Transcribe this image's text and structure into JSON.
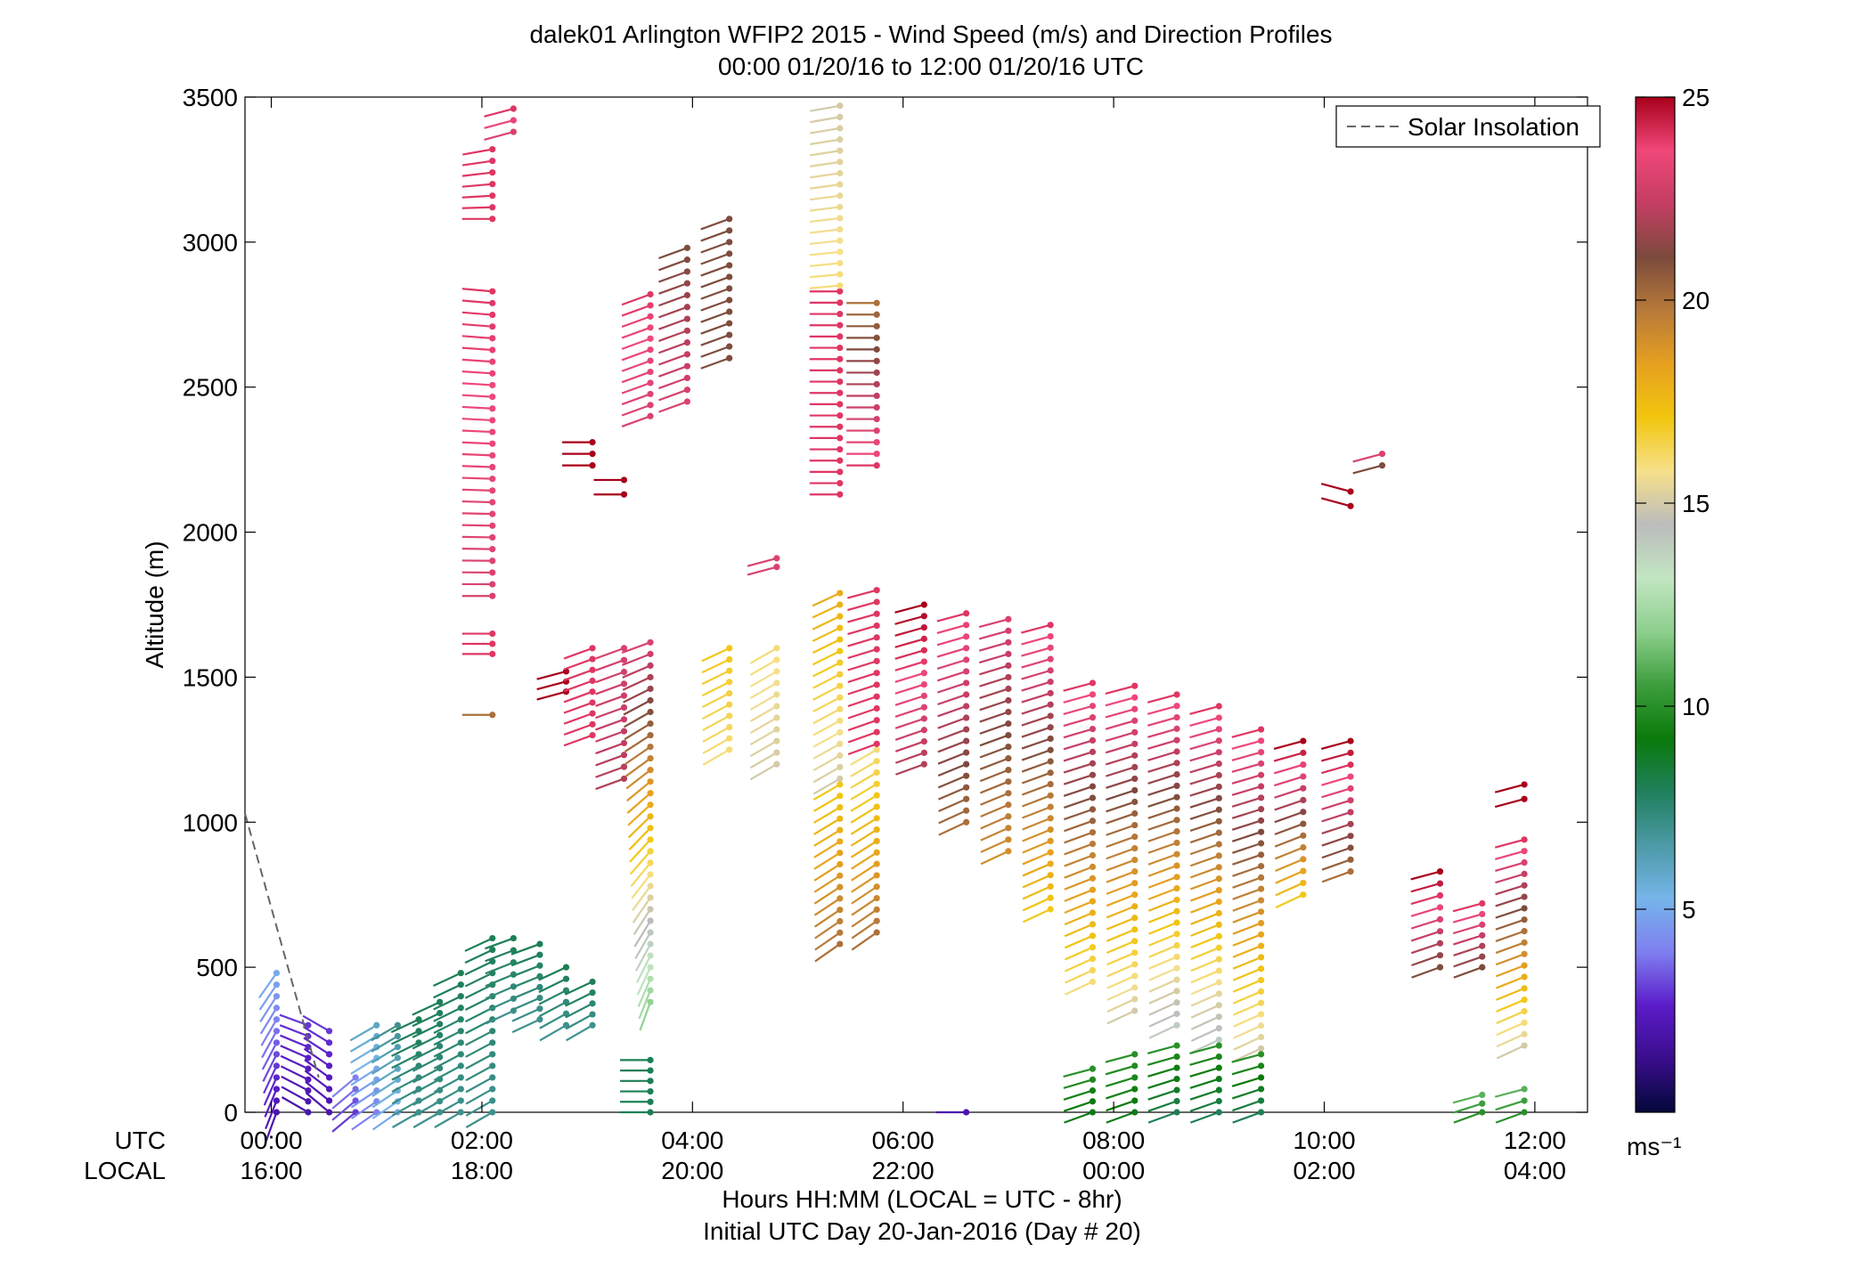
{
  "chart_data": {
    "type": "scatter",
    "subtype": "wind-barb profile",
    "title": "dalek01 Arlington WFIP2 2015 - Wind Speed (m/s) and Direction Profiles",
    "subtitle": "00:00 01/20/16 to 12:00 01/20/16  UTC",
    "xlabel": "Hours HH:MM  (LOCAL = UTC - 8hr)",
    "xlabel2": "Initial UTC Day 20-Jan-2016 (Day # 20)",
    "ylabel": "Altitude (m)",
    "xlim": [
      -0.25,
      12.5
    ],
    "ylim": [
      0,
      3500
    ],
    "x_row_labels": {
      "utc": "UTC",
      "local": "LOCAL"
    },
    "x_ticks": [
      {
        "hour": 0,
        "utc": "00:00",
        "local": "16:00"
      },
      {
        "hour": 2,
        "utc": "02:00",
        "local": "18:00"
      },
      {
        "hour": 4,
        "utc": "04:00",
        "local": "20:00"
      },
      {
        "hour": 6,
        "utc": "06:00",
        "local": "22:00"
      },
      {
        "hour": 8,
        "utc": "08:00",
        "local": "00:00"
      },
      {
        "hour": 10,
        "utc": "10:00",
        "local": "02:00"
      },
      {
        "hour": 12,
        "utc": "12:00",
        "local": "04:00"
      }
    ],
    "y_ticks": [
      0,
      500,
      1000,
      1500,
      2000,
      2500,
      3000,
      3500
    ],
    "legend": {
      "label": "Solar Insolation",
      "position": "top-right",
      "style": "dashed gray line"
    },
    "solar_insolation": {
      "x": [
        -0.25,
        0.45
      ],
      "y": [
        1030,
        120
      ]
    },
    "colorbar": {
      "label": "ms⁻¹",
      "ticks": [
        5,
        10,
        15,
        20,
        25
      ],
      "range": [
        0,
        25
      ],
      "colormap": [
        "#03083a",
        "#3a0d8c",
        "#5b1cc9",
        "#7f7ff0",
        "#76b5ea",
        "#4c9aa6",
        "#1f7f5c",
        "#0a7a0a",
        "#3d9e3d",
        "#8ecf8e",
        "#c2e6c2",
        "#bcbcbc",
        "#f6e08a",
        "#f2c60e",
        "#e6a01f",
        "#b87a3a",
        "#7b4a3c",
        "#c43d63",
        "#f0477a",
        "#a8001a"
      ]
    },
    "profiles": [
      {
        "t": 0.05,
        "segments": [
          {
            "a0": 0,
            "a1": 480,
            "s0": 2,
            "s1": 5,
            "d0": 200,
            "d1": 215
          }
        ]
      },
      {
        "t": 0.35,
        "segments": [
          {
            "a0": 0,
            "a1": 300,
            "s0": 2,
            "s1": 3,
            "d0": 300,
            "d1": 290
          }
        ]
      },
      {
        "t": 0.55,
        "segments": [
          {
            "a0": 0,
            "a1": 280,
            "s0": 2,
            "s1": 3,
            "d0": 310,
            "d1": 300
          }
        ]
      },
      {
        "t": 0.8,
        "segments": [
          {
            "a0": 0,
            "a1": 120,
            "s0": 3,
            "s1": 4,
            "d0": 230,
            "d1": 230
          }
        ]
      },
      {
        "t": 1.0,
        "segments": [
          {
            "a0": 0,
            "a1": 300,
            "s0": 4,
            "s1": 6,
            "d0": 235,
            "d1": 240
          }
        ]
      },
      {
        "t": 1.2,
        "segments": [
          {
            "a0": 0,
            "a1": 300,
            "s0": 5,
            "s1": 7,
            "d0": 235,
            "d1": 240
          }
        ]
      },
      {
        "t": 1.4,
        "segments": [
          {
            "a0": 0,
            "a1": 320,
            "s0": 7,
            "s1": 8,
            "d0": 240,
            "d1": 245
          }
        ]
      },
      {
        "t": 1.6,
        "segments": [
          {
            "a0": 0,
            "a1": 380,
            "s0": 7,
            "s1": 8,
            "d0": 240,
            "d1": 245
          }
        ]
      },
      {
        "t": 1.8,
        "segments": [
          {
            "a0": 0,
            "a1": 480,
            "s0": 7,
            "s1": 8,
            "d0": 240,
            "d1": 245
          }
        ]
      },
      {
        "t": 2.1,
        "segments": [
          {
            "a0": 0,
            "a1": 600,
            "s0": 7,
            "s1": 8,
            "d0": 240,
            "d1": 245
          },
          {
            "a0": 1370,
            "a1": 1370,
            "s0": 20,
            "s1": 20,
            "d0": 270,
            "d1": 270
          },
          {
            "a0": 1580,
            "a1": 1650,
            "s0": 24,
            "s1": 24,
            "d0": 270,
            "d1": 270
          },
          {
            "a0": 1780,
            "a1": 2830,
            "s0": 23,
            "s1": 24,
            "d0": 270,
            "d1": 275
          },
          {
            "a0": 3080,
            "a1": 3320,
            "s0": 24,
            "s1": 24,
            "d0": 270,
            "d1": 260
          }
        ]
      },
      {
        "t": 2.3,
        "segments": [
          {
            "a0": 350,
            "a1": 600,
            "s0": 7,
            "s1": 8,
            "d0": 245,
            "d1": 250
          },
          {
            "a0": 3380,
            "a1": 3460,
            "s0": 23,
            "s1": 24,
            "d0": 255,
            "d1": 255
          }
        ]
      },
      {
        "t": 2.55,
        "segments": [
          {
            "a0": 320,
            "a1": 580,
            "s0": 7,
            "s1": 8,
            "d0": 245,
            "d1": 250
          }
        ]
      },
      {
        "t": 2.8,
        "segments": [
          {
            "a0": 300,
            "a1": 500,
            "s0": 7,
            "s1": 8,
            "d0": 240,
            "d1": 245
          },
          {
            "a0": 1450,
            "a1": 1520,
            "s0": 25,
            "s1": 25,
            "d0": 255,
            "d1": 255
          }
        ]
      },
      {
        "t": 3.05,
        "segments": [
          {
            "a0": 300,
            "a1": 450,
            "s0": 7,
            "s1": 8,
            "d0": 240,
            "d1": 245
          },
          {
            "a0": 1300,
            "a1": 1600,
            "s0": 24,
            "s1": 24,
            "d0": 250,
            "d1": 250
          },
          {
            "a0": 2230,
            "a1": 2310,
            "s0": 25,
            "s1": 25,
            "d0": 270,
            "d1": 270
          }
        ]
      },
      {
        "t": 3.35,
        "segments": [
          {
            "a0": 1150,
            "a1": 1600,
            "s0": 22,
            "s1": 23,
            "d0": 250,
            "d1": 250
          },
          {
            "a0": 2130,
            "a1": 2180,
            "s0": 25,
            "s1": 25,
            "d0": 270,
            "d1": 270
          }
        ]
      },
      {
        "t": 3.6,
        "segments": [
          {
            "a0": 0,
            "a1": 180,
            "s0": 8,
            "s1": 8,
            "d0": 270,
            "d1": 270
          },
          {
            "a0": 380,
            "a1": 1620,
            "s0": 12,
            "s1": 23,
            "d0": 200,
            "d1": 250
          },
          {
            "a0": 2400,
            "a1": 2820,
            "s0": 23,
            "s1": 24,
            "d0": 250,
            "d1": 250
          }
        ]
      },
      {
        "t": 3.95,
        "segments": [
          {
            "a0": 2450,
            "a1": 2980,
            "s0": 23,
            "s1": 21,
            "d0": 250,
            "d1": 250
          }
        ]
      },
      {
        "t": 4.35,
        "segments": [
          {
            "a0": 2600,
            "a1": 3080,
            "s0": 21,
            "s1": 21,
            "d0": 250,
            "d1": 250
          },
          {
            "a0": 1250,
            "a1": 1600,
            "s0": 16,
            "s1": 17,
            "d0": 240,
            "d1": 245
          }
        ]
      },
      {
        "t": 4.8,
        "segments": [
          {
            "a0": 1200,
            "a1": 1600,
            "s0": 15,
            "s1": 16,
            "d0": 240,
            "d1": 240
          },
          {
            "a0": 1880,
            "a1": 1910,
            "s0": 23,
            "s1": 23,
            "d0": 255,
            "d1": 255
          }
        ]
      },
      {
        "t": 5.4,
        "segments": [
          {
            "a0": 580,
            "a1": 1130,
            "s0": 20,
            "s1": 17,
            "d0": 235,
            "d1": 240
          },
          {
            "a0": 1150,
            "a1": 1790,
            "s0": 15,
            "s1": 18,
            "d0": 240,
            "d1": 245
          },
          {
            "a0": 2130,
            "a1": 2830,
            "s0": 24,
            "s1": 24,
            "d0": 270,
            "d1": 270
          },
          {
            "a0": 2850,
            "a1": 3470,
            "s0": 16,
            "s1": 15,
            "d0": 265,
            "d1": 260
          }
        ]
      },
      {
        "t": 5.75,
        "segments": [
          {
            "a0": 620,
            "a1": 1250,
            "s0": 20,
            "s1": 16,
            "d0": 235,
            "d1": 240
          },
          {
            "a0": 1270,
            "a1": 1800,
            "s0": 24,
            "s1": 24,
            "d0": 250,
            "d1": 255
          },
          {
            "a0": 2230,
            "a1": 2790,
            "s0": 24,
            "s1": 20,
            "d0": 270,
            "d1": 270
          }
        ]
      },
      {
        "t": 6.2,
        "segments": [
          {
            "a0": 1200,
            "a1": 1750,
            "s0": 22,
            "s1": 25,
            "d0": 250,
            "d1": 255
          }
        ]
      },
      {
        "t": 6.6,
        "segments": [
          {
            "a0": 0,
            "a1": 0,
            "s0": 2,
            "s1": 2,
            "d0": 270,
            "d1": 270
          },
          {
            "a0": 1000,
            "a1": 1720,
            "s0": 20,
            "s1": 24,
            "d0": 245,
            "d1": 255
          }
        ]
      },
      {
        "t": 7.0,
        "segments": [
          {
            "a0": 900,
            "a1": 1700,
            "s0": 19,
            "s1": 23,
            "d0": 245,
            "d1": 255
          }
        ]
      },
      {
        "t": 7.4,
        "segments": [
          {
            "a0": 700,
            "a1": 1680,
            "s0": 17,
            "s1": 24,
            "d0": 245,
            "d1": 255
          }
        ]
      },
      {
        "t": 7.8,
        "segments": [
          {
            "a0": 450,
            "a1": 1480,
            "s0": 16,
            "s1": 24,
            "d0": 245,
            "d1": 255
          },
          {
            "a0": 0,
            "a1": 150,
            "s0": 9,
            "s1": 10,
            "d0": 250,
            "d1": 255
          }
        ]
      },
      {
        "t": 8.2,
        "segments": [
          {
            "a0": 350,
            "a1": 1470,
            "s0": 15,
            "s1": 24,
            "d0": 245,
            "d1": 255
          },
          {
            "a0": 0,
            "a1": 200,
            "s0": 9,
            "s1": 10,
            "d0": 250,
            "d1": 255
          }
        ]
      },
      {
        "t": 8.6,
        "segments": [
          {
            "a0": 300,
            "a1": 1440,
            "s0": 14,
            "s1": 24,
            "d0": 245,
            "d1": 255
          },
          {
            "a0": 0,
            "a1": 230,
            "s0": 8,
            "s1": 10,
            "d0": 250,
            "d1": 255
          }
        ]
      },
      {
        "t": 9.0,
        "segments": [
          {
            "a0": 250,
            "a1": 1400,
            "s0": 14,
            "s1": 24,
            "d0": 245,
            "d1": 255
          },
          {
            "a0": 0,
            "a1": 230,
            "s0": 8,
            "s1": 10,
            "d0": 250,
            "d1": 255
          }
        ]
      },
      {
        "t": 9.4,
        "segments": [
          {
            "a0": 220,
            "a1": 1320,
            "s0": 15,
            "s1": 24,
            "d0": 245,
            "d1": 255
          },
          {
            "a0": 0,
            "a1": 200,
            "s0": 8,
            "s1": 10,
            "d0": 250,
            "d1": 255
          }
        ]
      },
      {
        "t": 9.8,
        "segments": [
          {
            "a0": 750,
            "a1": 1280,
            "s0": 17,
            "s1": 25,
            "d0": 245,
            "d1": 255
          }
        ]
      },
      {
        "t": 10.25,
        "segments": [
          {
            "a0": 830,
            "a1": 1280,
            "s0": 20,
            "s1": 25,
            "d0": 250,
            "d1": 255
          },
          {
            "a0": 2090,
            "a1": 2140,
            "s0": 25,
            "s1": 25,
            "d0": 285,
            "d1": 285
          }
        ]
      },
      {
        "t": 10.55,
        "segments": [
          {
            "a0": 2230,
            "a1": 2270,
            "s0": 21,
            "s1": 23,
            "d0": 255,
            "d1": 255
          }
        ]
      },
      {
        "t": 11.1,
        "segments": [
          {
            "a0": 500,
            "a1": 830,
            "s0": 21,
            "s1": 25,
            "d0": 250,
            "d1": 255
          }
        ]
      },
      {
        "t": 11.5,
        "segments": [
          {
            "a0": 500,
            "a1": 720,
            "s0": 21,
            "s1": 24,
            "d0": 250,
            "d1": 255
          },
          {
            "a0": 0,
            "a1": 60,
            "s0": 10,
            "s1": 11,
            "d0": 250,
            "d1": 255
          }
        ]
      },
      {
        "t": 11.9,
        "segments": [
          {
            "a0": 230,
            "a1": 940,
            "s0": 15,
            "s1": 24,
            "d0": 245,
            "d1": 255
          },
          {
            "a0": 1080,
            "a1": 1130,
            "s0": 25,
            "s1": 25,
            "d0": 255,
            "d1": 255
          },
          {
            "a0": 0,
            "a1": 80,
            "s0": 10,
            "s1": 11,
            "d0": 250,
            "d1": 255
          }
        ]
      }
    ]
  }
}
